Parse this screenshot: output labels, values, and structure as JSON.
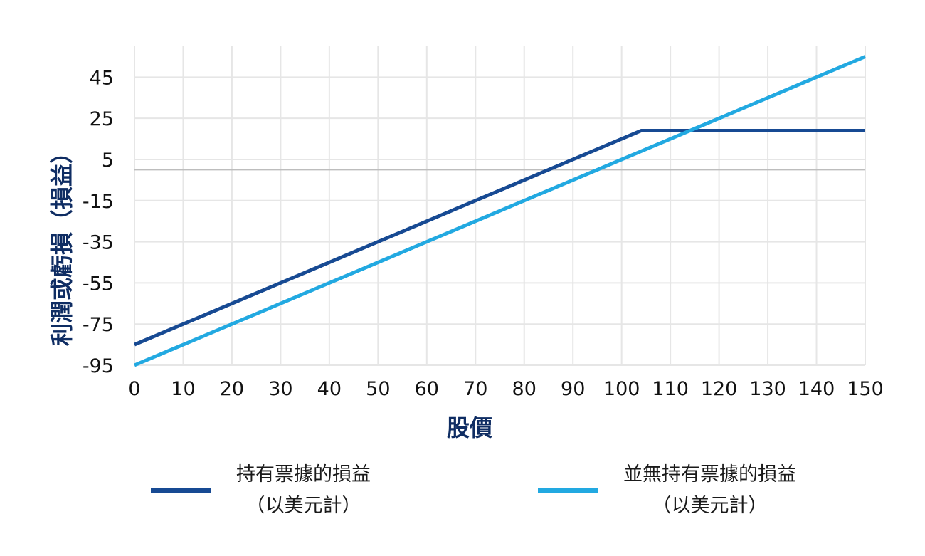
{
  "chart_data": {
    "type": "line",
    "title": "",
    "xlabel": "股價",
    "ylabel": "利潤或虧損（損益）",
    "xlim": [
      0,
      150
    ],
    "ylim": [
      -95,
      60
    ],
    "x_ticks": [
      0,
      10,
      20,
      30,
      40,
      50,
      60,
      70,
      80,
      90,
      100,
      110,
      120,
      130,
      140,
      150
    ],
    "y_ticks": [
      -95,
      -75,
      -55,
      -35,
      -15,
      5,
      25,
      45
    ],
    "zero_line": 0,
    "grid": true,
    "series": [
      {
        "name_line1": "持有票據的損益",
        "name_line2": "（以美元計）",
        "color": "#174a93",
        "points": [
          [
            0,
            -85
          ],
          [
            104,
            19
          ],
          [
            150,
            19
          ]
        ]
      },
      {
        "name_line1": "並無持有票據的損益",
        "name_line2": "（以美元計）",
        "color": "#22a9e1",
        "points": [
          [
            0,
            -95
          ],
          [
            150,
            55
          ]
        ]
      }
    ],
    "legend_position": "bottom"
  }
}
